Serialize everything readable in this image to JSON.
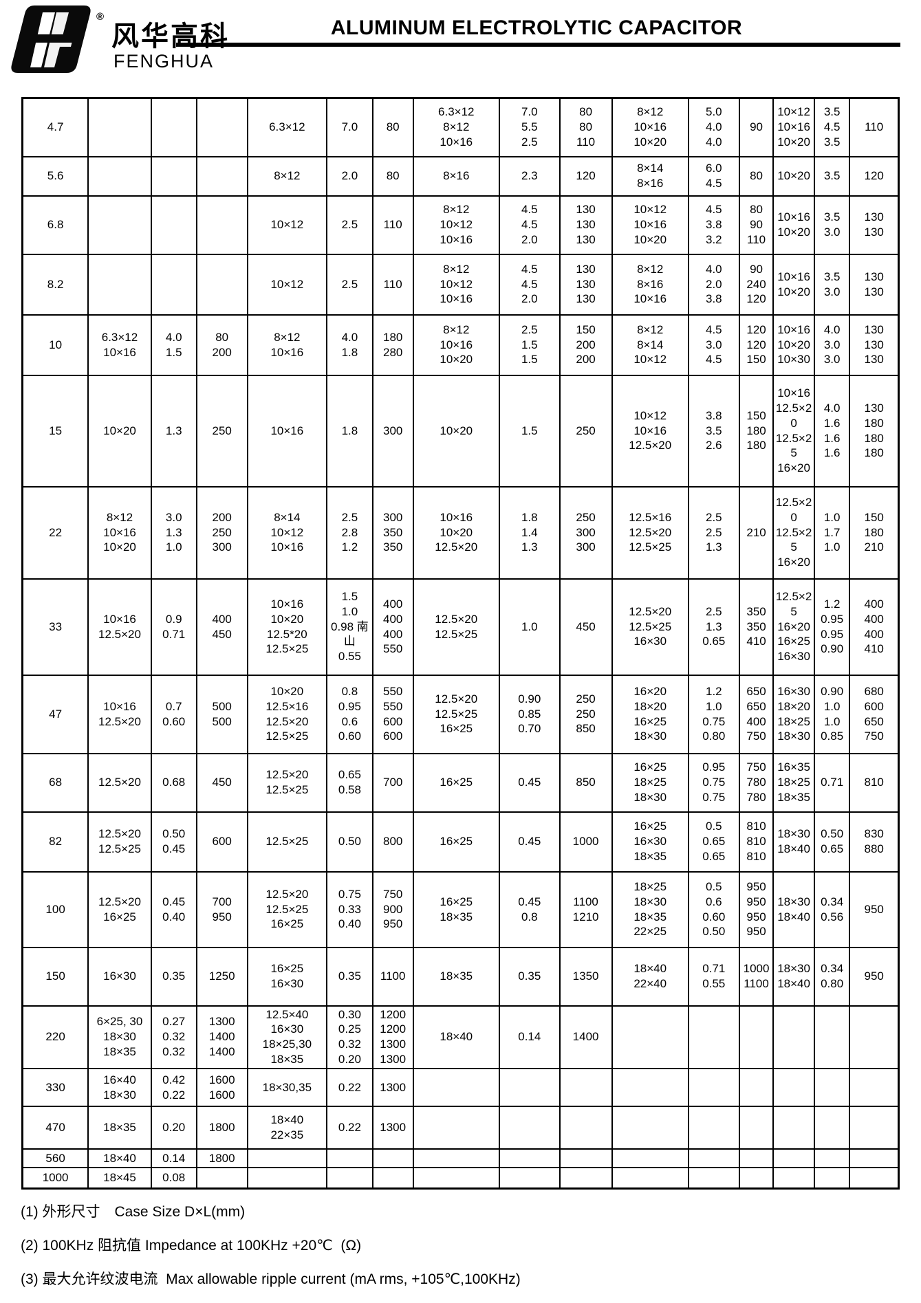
{
  "header": {
    "registered_mark": "®",
    "brand_cn": "风华高科",
    "brand_en": "FENGHUA",
    "title": "ALUMINUM ELECTROLYTIC CAPACITOR"
  },
  "table": {
    "rows": [
      [
        [
          "4.7"
        ],
        [],
        [],
        [],
        [
          "6.3×12"
        ],
        [
          "7.0"
        ],
        [
          "80"
        ],
        [
          "6.3×12",
          "8×12",
          "10×16"
        ],
        [
          "7.0",
          "5.5",
          "2.5"
        ],
        [
          "80",
          "80",
          "110"
        ],
        [
          "8×12",
          "10×16",
          "10×20"
        ],
        [
          "5.0",
          "4.0",
          "4.0"
        ],
        [
          "90"
        ],
        [
          "10×12",
          "10×16",
          "10×20"
        ],
        [
          "3.5",
          "4.5",
          "3.5"
        ],
        [
          "110"
        ]
      ],
      [
        [
          "5.6"
        ],
        [],
        [],
        [],
        [
          "8×12"
        ],
        [
          "2.0"
        ],
        [
          "80"
        ],
        [
          "8×16"
        ],
        [
          "2.3"
        ],
        [
          "120"
        ],
        [
          "8×14",
          "8×16"
        ],
        [
          "6.0",
          "4.5"
        ],
        [
          "80"
        ],
        [
          "10×20"
        ],
        [
          "3.5"
        ],
        [
          "120"
        ]
      ],
      [
        [
          "6.8"
        ],
        [],
        [],
        [],
        [
          "10×12"
        ],
        [
          "2.5"
        ],
        [
          "110"
        ],
        [
          "8×12",
          "10×12",
          "10×16"
        ],
        [
          "4.5",
          "4.5",
          "2.0"
        ],
        [
          "130",
          "130",
          "130"
        ],
        [
          "10×12",
          "10×16",
          "10×20"
        ],
        [
          "4.5",
          "3.8",
          "3.2"
        ],
        [
          "80",
          "90",
          "110"
        ],
        [
          "10×16",
          "10×20"
        ],
        [
          "3.5",
          "3.0"
        ],
        [
          "130",
          "130"
        ]
      ],
      [
        [
          "8.2"
        ],
        [],
        [],
        [],
        [
          "10×12"
        ],
        [
          "2.5"
        ],
        [
          "110"
        ],
        [
          "8×12",
          "10×12",
          "10×16"
        ],
        [
          "4.5",
          "4.5",
          "2.0"
        ],
        [
          "130",
          "130",
          "130"
        ],
        [
          "8×12",
          "8×16",
          "10×16"
        ],
        [
          "4.0",
          "2.0",
          "3.8"
        ],
        [
          "90",
          "240",
          "120"
        ],
        [
          "10×16",
          "10×20"
        ],
        [
          "3.5",
          "3.0"
        ],
        [
          "130",
          "130"
        ]
      ],
      [
        [
          "10"
        ],
        [
          "6.3×12",
          "10×16"
        ],
        [
          "4.0",
          "1.5"
        ],
        [
          "80",
          "200"
        ],
        [
          "8×12",
          "10×16"
        ],
        [
          "4.0",
          "1.8"
        ],
        [
          "180",
          "280"
        ],
        [
          "8×12",
          "10×16",
          "10×20"
        ],
        [
          "2.5",
          "1.5",
          "1.5"
        ],
        [
          "150",
          "200",
          "200"
        ],
        [
          "8×12",
          "8×14",
          "10×12"
        ],
        [
          "4.5",
          "3.0",
          "4.5"
        ],
        [
          "120",
          "120",
          "150"
        ],
        [
          "10×16",
          "10×20",
          "10×30"
        ],
        [
          "4.0",
          "3.0",
          "3.0"
        ],
        [
          "130",
          "130",
          "130"
        ]
      ],
      [
        [
          "15"
        ],
        [
          "10×20"
        ],
        [
          "1.3"
        ],
        [
          "250"
        ],
        [
          "10×16"
        ],
        [
          "1.8"
        ],
        [
          "300"
        ],
        [
          "10×20"
        ],
        [
          "1.5"
        ],
        [
          "250"
        ],
        [
          "10×12",
          "10×16",
          "12.5×20"
        ],
        [
          "3.8",
          "3.5",
          "2.6"
        ],
        [
          "150",
          "180",
          "180"
        ],
        [
          "10×16",
          "12.5×20",
          "12.5×25",
          "16×20"
        ],
        [
          "4.0",
          "1.6",
          "1.6",
          "1.6"
        ],
        [
          "130",
          "180",
          "180",
          "180"
        ]
      ],
      [
        [
          "22"
        ],
        [
          "8×12",
          "10×16",
          "10×20"
        ],
        [
          "3.0",
          "1.3",
          "1.0"
        ],
        [
          "200",
          "250",
          "300"
        ],
        [
          "8×14",
          "10×12",
          "10×16"
        ],
        [
          "2.5",
          "2.8",
          "1.2"
        ],
        [
          "300",
          "350",
          "350"
        ],
        [
          "10×16",
          "10×20",
          "12.5×20"
        ],
        [
          "1.8",
          "1.4",
          "1.3"
        ],
        [
          "250",
          "300",
          "300"
        ],
        [
          "12.5×16",
          "12.5×20",
          "12.5×25"
        ],
        [
          "2.5",
          "2.5",
          "1.3"
        ],
        [
          "210"
        ],
        [
          "12.5×20",
          "12.5×25",
          "16×20"
        ],
        [
          "1.0",
          "1.7",
          "1.0"
        ],
        [
          "150",
          "180",
          "210"
        ]
      ],
      [
        [
          "33"
        ],
        [
          "10×16",
          "12.5×20"
        ],
        [
          "0.9",
          "0.71"
        ],
        [
          "400",
          "450"
        ],
        [
          "10×16",
          "10×20",
          "12.5*20",
          "12.5×25"
        ],
        [
          "1.5",
          "1.0",
          "0.98 南山",
          "0.55"
        ],
        [
          "400",
          "400",
          "400",
          "550"
        ],
        [
          "12.5×20",
          "12.5×25"
        ],
        [
          "1.0"
        ],
        [
          "450"
        ],
        [
          "12.5×20",
          "12.5×25",
          "16×30"
        ],
        [
          "2.5",
          "1.3",
          "0.65"
        ],
        [
          "350",
          "350",
          "410"
        ],
        [
          "12.5×25",
          "16×20",
          "16×25",
          "16×30"
        ],
        [
          "1.2",
          "0.95",
          "0.95",
          "0.90"
        ],
        [
          "400",
          "400",
          "400",
          "410"
        ]
      ],
      [
        [
          "47"
        ],
        [
          "10×16",
          "12.5×20"
        ],
        [
          "0.7",
          "0.60"
        ],
        [
          "500",
          "500"
        ],
        [
          "10×20",
          "12.5×16",
          "12.5×20",
          "12.5×25"
        ],
        [
          "0.8",
          "0.95",
          "0.6",
          "0.60"
        ],
        [
          "550",
          "550",
          "600",
          "600"
        ],
        [
          "12.5×20",
          "12.5×25",
          "16×25"
        ],
        [
          "0.90",
          "0.85",
          "0.70"
        ],
        [
          "250",
          "250",
          "850"
        ],
        [
          "16×20",
          "18×20",
          "16×25",
          "18×30"
        ],
        [
          "1.2",
          "1.0",
          "0.75",
          "0.80"
        ],
        [
          "650",
          "650",
          "400",
          "750"
        ],
        [
          "16×30",
          "18×20",
          "18×25",
          "18×30"
        ],
        [
          "0.90",
          "1.0",
          "1.0",
          "0.85"
        ],
        [
          "680",
          "600",
          "650",
          "750"
        ]
      ],
      [
        [
          "68"
        ],
        [
          "12.5×20"
        ],
        [
          "0.68"
        ],
        [
          "450"
        ],
        [
          "12.5×20",
          "12.5×25"
        ],
        [
          "0.65",
          "0.58"
        ],
        [
          "700"
        ],
        [
          "16×25"
        ],
        [
          "0.45"
        ],
        [
          "850"
        ],
        [
          "16×25",
          "18×25",
          "18×30"
        ],
        [
          "0.95",
          "0.75",
          "0.75"
        ],
        [
          "750",
          "780",
          "780"
        ],
        [
          "16×35",
          "18×25",
          "18×35"
        ],
        [
          "0.71"
        ],
        [
          "810"
        ]
      ],
      [
        [
          "82"
        ],
        [
          "12.5×20",
          "12.5×25"
        ],
        [
          "0.50",
          "0.45"
        ],
        [
          "600"
        ],
        [
          "12.5×25"
        ],
        [
          "0.50"
        ],
        [
          "800"
        ],
        [
          "16×25"
        ],
        [
          "0.45"
        ],
        [
          "1000"
        ],
        [
          "16×25",
          "16×30",
          "18×35"
        ],
        [
          "0.5",
          "0.65",
          "0.65"
        ],
        [
          "810",
          "810",
          "810"
        ],
        [
          "18×30",
          "18×40"
        ],
        [
          "0.50",
          "0.65"
        ],
        [
          "830",
          "880"
        ]
      ],
      [
        [
          "100"
        ],
        [
          "12.5×20",
          "16×25"
        ],
        [
          "0.45",
          "0.40"
        ],
        [
          "700",
          "950"
        ],
        [
          "12.5×20",
          "12.5×25",
          "16×25"
        ],
        [
          "0.75",
          "0.33",
          "0.40"
        ],
        [
          "750",
          "900",
          "950"
        ],
        [
          "16×25",
          "18×35"
        ],
        [
          "0.45",
          "0.8"
        ],
        [
          "1100",
          "1210"
        ],
        [
          "18×25",
          "18×30",
          "18×35",
          "22×25"
        ],
        [
          "0.5",
          "0.6",
          "0.60",
          "0.50"
        ],
        [
          "950",
          "950",
          "950",
          "950"
        ],
        [
          "18×30",
          "18×40"
        ],
        [
          "0.34",
          "0.56"
        ],
        [
          "950"
        ]
      ],
      [
        [
          "150"
        ],
        [
          "16×30"
        ],
        [
          "0.35"
        ],
        [
          "1250"
        ],
        [
          "16×25",
          "16×30"
        ],
        [
          "0.35"
        ],
        [
          "1100"
        ],
        [
          "18×35"
        ],
        [
          "0.35"
        ],
        [
          "1350"
        ],
        [
          "18×40",
          "22×40"
        ],
        [
          "0.71",
          "0.55"
        ],
        [
          "1000",
          "1100"
        ],
        [
          "18×30",
          "18×40"
        ],
        [
          "0.34",
          "0.80"
        ],
        [
          "950"
        ]
      ],
      [
        [
          "220"
        ],
        [
          "6×25, 30",
          "18×30",
          "18×35"
        ],
        [
          "0.27",
          "0.32",
          "0.32"
        ],
        [
          "1300",
          "1400",
          "1400"
        ],
        [
          "12.5×40",
          "16×30",
          "18×25,30",
          "18×35"
        ],
        [
          "0.30",
          "0.25",
          "0.32",
          "0.20"
        ],
        [
          "1200",
          "1200",
          "1300",
          "1300"
        ],
        [
          "18×40"
        ],
        [
          "0.14"
        ],
        [
          "1400"
        ],
        [],
        [],
        [],
        [],
        [],
        []
      ],
      [
        [
          "330"
        ],
        [
          "16×40",
          "18×30"
        ],
        [
          "0.42",
          "0.22"
        ],
        [
          "1600",
          "1600"
        ],
        [
          "18×30,35"
        ],
        [
          "0.22"
        ],
        [
          "1300"
        ],
        [],
        [],
        [],
        [],
        [],
        [],
        [],
        [],
        []
      ],
      [
        [
          "470"
        ],
        [
          "18×35"
        ],
        [
          "0.20"
        ],
        [
          "1800"
        ],
        [
          "18×40",
          "22×35"
        ],
        [
          "0.22"
        ],
        [
          "1300"
        ],
        [],
        [],
        [],
        [],
        [],
        [],
        [],
        [],
        []
      ],
      [
        [
          "560"
        ],
        [
          "18×40"
        ],
        [
          "0.14"
        ],
        [
          "1800"
        ],
        [],
        [],
        [],
        [],
        [],
        [],
        [],
        [],
        [],
        [],
        [],
        []
      ],
      [
        [
          "1000"
        ],
        [
          "18×45"
        ],
        [
          "0.08"
        ],
        [],
        [],
        [],
        [],
        [],
        [],
        [],
        [],
        [],
        [],
        [],
        [],
        []
      ]
    ]
  },
  "notes": [
    "(1) 外形尺寸　Case Size D×L(mm)",
    "(2) 100KHz 阻抗值 Impedance at 100KHz +20℃  (Ω)",
    "(3) 最大允许纹波电流  Max allowable ripple current (mA rms, +105℃,100KHz)"
  ]
}
